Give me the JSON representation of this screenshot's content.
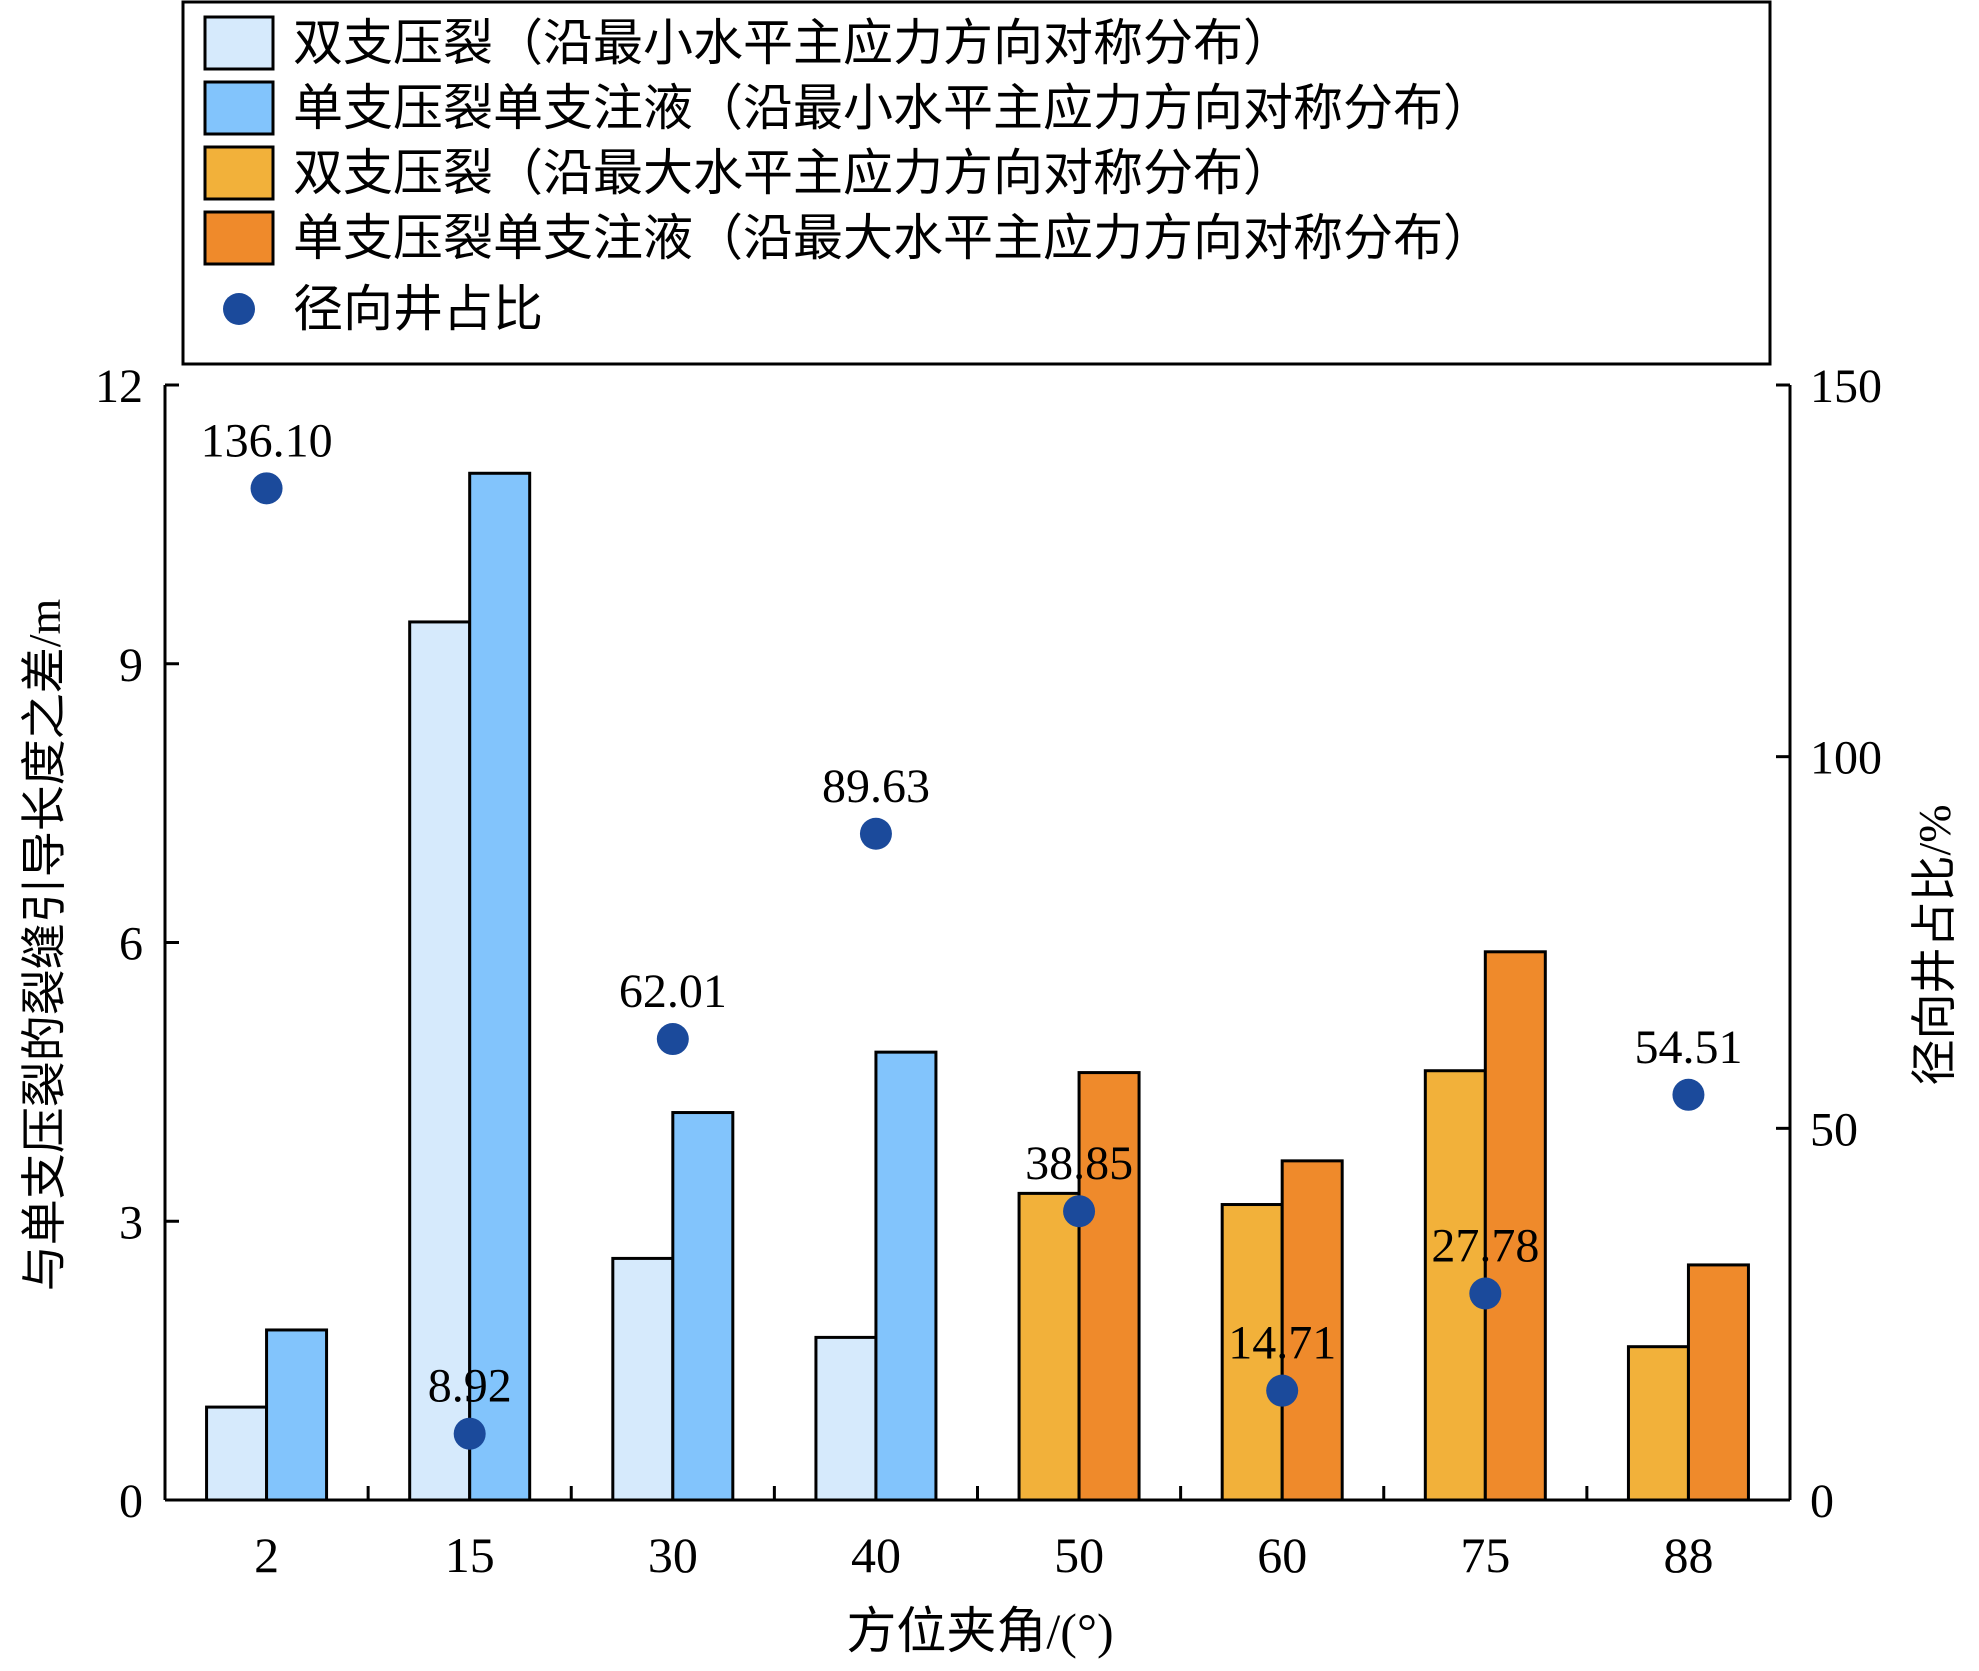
{
  "chart_data": {
    "type": "bar",
    "xlabel": "方位夹角/(°)",
    "ylabel": "与单支压裂的裂缝引导长度之差/m",
    "y2label": "径向井占比/%",
    "categories": [
      "2",
      "15",
      "30",
      "40",
      "50",
      "60",
      "75",
      "88"
    ],
    "ylim": [
      0,
      12
    ],
    "y_ticks": [
      0,
      3,
      6,
      9,
      12
    ],
    "y2lim": [
      0,
      150
    ],
    "y2_ticks": [
      0,
      50,
      100,
      150
    ],
    "legend_position": "top",
    "grid": false,
    "groups": [
      {
        "categories": [
          "2",
          "15",
          "30",
          "40"
        ],
        "series": [
          {
            "name": "双支压裂（沿最小水平主应力方向对称分布）",
            "color": "#d6eafc",
            "values": [
              1.0,
              9.45,
              2.6,
              1.75
            ]
          },
          {
            "name": "单支压裂单支注液（沿最小水平主应力方向对称分布）",
            "color": "#82c4fc",
            "values": [
              1.83,
              11.05,
              4.17,
              4.82
            ]
          }
        ]
      },
      {
        "categories": [
          "50",
          "60",
          "75",
          "88"
        ],
        "series": [
          {
            "name": "双支压裂（沿最大水平主应力方向对称分布）",
            "color": "#f2b13a",
            "values": [
              3.3,
              3.18,
              4.62,
              1.65
            ]
          },
          {
            "name": "单支压裂单支注液（沿最大水平主应力方向对称分布）",
            "color": "#ef8a2b",
            "values": [
              4.6,
              3.65,
              5.9,
              2.53
            ]
          }
        ]
      }
    ],
    "scatter": {
      "name": "径向井占比",
      "axis": "right",
      "color": "#1b4a9b",
      "values": [
        136.1,
        8.92,
        62.01,
        89.63,
        38.85,
        14.71,
        27.78,
        54.51
      ],
      "labels": [
        "136.10",
        "8.92",
        "62.01",
        "89.63",
        "38.85",
        "14.71",
        "27.78",
        "54.51"
      ]
    },
    "legend": [
      {
        "label": "双支压裂（沿最小水平主应力方向对称分布）",
        "type": "bar",
        "color": "#d6eafc"
      },
      {
        "label": "单支压裂单支注液（沿最小水平主应力方向对称分布）",
        "type": "bar",
        "color": "#82c4fc"
      },
      {
        "label": "双支压裂（沿最大水平主应力方向对称分布）",
        "type": "bar",
        "color": "#f2b13a"
      },
      {
        "label": "单支压裂单支注液（沿最大水平主应力方向对称分布）",
        "type": "bar",
        "color": "#ef8a2b"
      },
      {
        "label": "径向井占比",
        "type": "dot",
        "color": "#1b4a9b"
      }
    ]
  }
}
